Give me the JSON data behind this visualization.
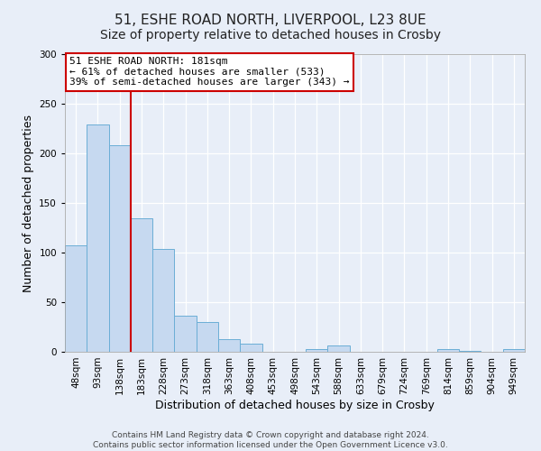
{
  "title": "51, ESHE ROAD NORTH, LIVERPOOL, L23 8UE",
  "subtitle": "Size of property relative to detached houses in Crosby",
  "xlabel": "Distribution of detached houses by size in Crosby",
  "ylabel": "Number of detached properties",
  "bar_labels": [
    "48sqm",
    "93sqm",
    "138sqm",
    "183sqm",
    "228sqm",
    "273sqm",
    "318sqm",
    "363sqm",
    "408sqm",
    "453sqm",
    "498sqm",
    "543sqm",
    "588sqm",
    "633sqm",
    "679sqm",
    "724sqm",
    "769sqm",
    "814sqm",
    "859sqm",
    "904sqm",
    "949sqm"
  ],
  "bar_values": [
    107,
    229,
    208,
    135,
    104,
    36,
    30,
    13,
    8,
    0,
    0,
    3,
    6,
    0,
    0,
    0,
    0,
    3,
    1,
    0,
    3
  ],
  "bar_color": "#c6d9f0",
  "bar_edge_color": "#6baed6",
  "bar_width": 1.0,
  "property_label": "51 ESHE ROAD NORTH: 181sqm",
  "annotation_line1": "← 61% of detached houses are smaller (533)",
  "annotation_line2": "39% of semi-detached houses are larger (343) →",
  "vline_color": "#cc0000",
  "vline_x_index": 2.5,
  "annotation_box_facecolor": "#ffffff",
  "annotation_box_edgecolor": "#cc0000",
  "ylim": [
    0,
    300
  ],
  "yticks": [
    0,
    50,
    100,
    150,
    200,
    250,
    300
  ],
  "background_color": "#e8eef8",
  "grid_color": "#ffffff",
  "title_fontsize": 11,
  "axis_label_fontsize": 9,
  "tick_fontsize": 7.5,
  "annotation_fontsize": 8,
  "footer_fontsize": 6.5,
  "footer_line1": "Contains HM Land Registry data © Crown copyright and database right 2024.",
  "footer_line2": "Contains public sector information licensed under the Open Government Licence v3.0."
}
